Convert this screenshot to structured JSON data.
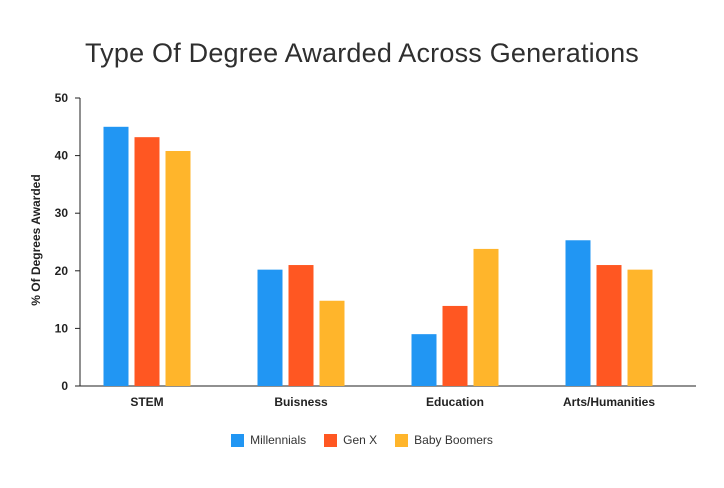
{
  "chart_data": {
    "type": "bar",
    "title": "Type Of Degree Awarded Across Generations",
    "xlabel": "",
    "ylabel": "% Of Degrees Awarded",
    "categories": [
      "STEM",
      "Buisness",
      "Education",
      "Arts/Humanities"
    ],
    "series": [
      {
        "name": "Millennials",
        "color": "#2196f3",
        "values": [
          45,
          20.2,
          9,
          25.3
        ]
      },
      {
        "name": "Gen X",
        "color": "#ff5722",
        "values": [
          43.2,
          21,
          13.9,
          21
        ]
      },
      {
        "name": "Baby Boomers",
        "color": "#ffb52b",
        "values": [
          40.8,
          14.8,
          23.8,
          20.2
        ]
      }
    ],
    "ylim": [
      0,
      50
    ],
    "yticks": [
      "0",
      "10",
      "20",
      "30",
      "40",
      "50"
    ],
    "grid": false,
    "legend": "bottom-center"
  }
}
